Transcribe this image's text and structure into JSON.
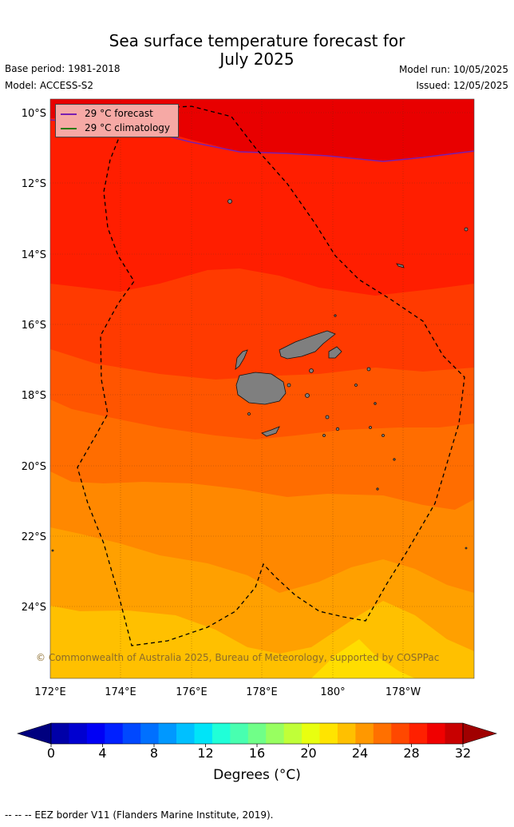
{
  "title": "Sea surface temperature forecast for\nJuly 2025",
  "title_line1": "Sea surface temperature forecast for",
  "title_line2": "July 2025",
  "base_period": "Base period: 1981-2018",
  "model": "Model: ACCESS-S2",
  "model_run": "Model run: 10/05/2025",
  "issued": "Issued: 12/05/2025",
  "lat_labels": [
    "10°S",
    "12°S",
    "14°S",
    "16°S",
    "18°S",
    "20°S",
    "22°S",
    "24°S"
  ],
  "lon_labels": [
    "172°E",
    "174°E",
    "176°E",
    "178°E",
    "180°",
    "178°W"
  ],
  "legend": {
    "forecast": "29 °C  forecast",
    "climatology": "29 °C  climatology",
    "forecast_color": "#7a1fb0",
    "climatology_color": "#2a7a10"
  },
  "copyright": "© Commonwealth of Australia 2025, Bureau of Meteorology, supported by COSPPac",
  "colorbar": {
    "ticks": [
      "0",
      "4",
      "8",
      "12",
      "16",
      "20",
      "24",
      "28",
      "32"
    ],
    "label": "Degrees (°C)",
    "colors": [
      "#00007f",
      "#0000a8",
      "#0000d0",
      "#0000f5",
      "#0020ff",
      "#0048ff",
      "#0070ff",
      "#0098ff",
      "#00c0ff",
      "#00e4f8",
      "#20ffd8",
      "#48ffb0",
      "#70ff88",
      "#98ff60",
      "#c0ff38",
      "#e8ff10",
      "#ffe400",
      "#ffc000",
      "#ff9800",
      "#ff7000",
      "#ff4800",
      "#ff2000",
      "#f00000",
      "#c80000",
      "#a00000"
    ]
  },
  "footer": "--  --  -- EEZ border V11 (Flanders Marine Institute, 2019)."
}
